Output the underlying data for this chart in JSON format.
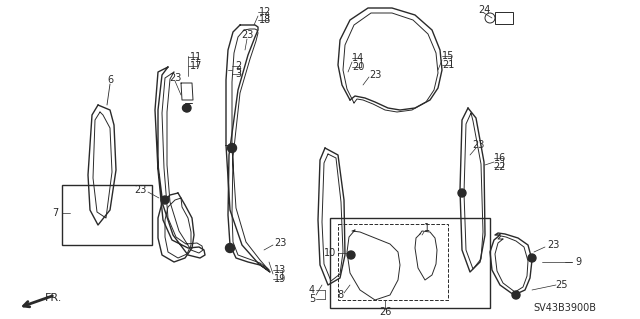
{
  "bg_color": "#ffffff",
  "diagram_color": "#2a2a2a",
  "part_number_text": "SV43B3900B",
  "fig_width": 6.4,
  "fig_height": 3.19,
  "dpi": 100
}
